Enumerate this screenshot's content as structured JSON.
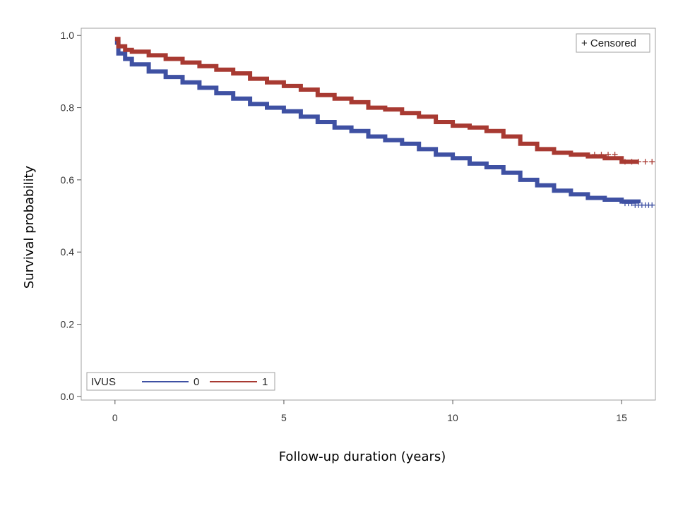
{
  "chart_data": {
    "type": "line",
    "subtype": "kaplan-meier",
    "title": "",
    "xlabel": "Follow-up duration (years)",
    "ylabel": "Survival probability",
    "xlim": [
      -1,
      16
    ],
    "ylim": [
      -0.01,
      1.02
    ],
    "x_ticks": [
      0,
      5,
      10,
      15
    ],
    "y_ticks": [
      0.0,
      0.2,
      0.4,
      0.6,
      0.8,
      1.0
    ],
    "x_tick_labels": [
      "0",
      "5",
      "10",
      "15"
    ],
    "y_tick_labels": [
      "0.0",
      "0.2",
      "0.4",
      "0.6",
      "0.8",
      "1.0"
    ],
    "grid": false,
    "legend": {
      "title": "IVUS",
      "placement": "bottom-left"
    },
    "censor_legend": {
      "label": "+ Censored",
      "placement": "top-right"
    },
    "series": [
      {
        "name": "0",
        "color": "#3f51a3",
        "x": [
          0,
          0.1,
          0.3,
          0.5,
          1,
          1.5,
          2,
          2.5,
          3,
          3.5,
          4,
          4.5,
          5,
          5.5,
          6,
          6.5,
          7,
          7.5,
          8,
          8.5,
          9,
          9.5,
          10,
          10.5,
          11,
          11.5,
          12,
          12.5,
          13,
          13.5,
          14,
          14.5,
          15,
          15.5
        ],
        "y": [
          0.98,
          0.95,
          0.935,
          0.92,
          0.9,
          0.885,
          0.87,
          0.855,
          0.84,
          0.825,
          0.81,
          0.8,
          0.79,
          0.775,
          0.76,
          0.745,
          0.735,
          0.72,
          0.71,
          0.7,
          0.685,
          0.67,
          0.66,
          0.645,
          0.635,
          0.62,
          0.6,
          0.585,
          0.57,
          0.56,
          0.55,
          0.545,
          0.54,
          0.535
        ]
      },
      {
        "name": "1",
        "color": "#a83a32",
        "x": [
          0,
          0.1,
          0.3,
          0.5,
          1,
          1.5,
          2,
          2.5,
          3,
          3.5,
          4,
          4.5,
          5,
          5.5,
          6,
          6.5,
          7,
          7.5,
          8,
          8.5,
          9,
          9.5,
          10,
          10.5,
          11,
          11.5,
          12,
          12.5,
          13,
          13.5,
          14,
          14.5,
          15,
          15.5
        ],
        "y": [
          0.99,
          0.97,
          0.96,
          0.955,
          0.945,
          0.935,
          0.925,
          0.915,
          0.905,
          0.895,
          0.88,
          0.87,
          0.86,
          0.85,
          0.835,
          0.825,
          0.815,
          0.8,
          0.795,
          0.785,
          0.775,
          0.76,
          0.75,
          0.745,
          0.735,
          0.72,
          0.7,
          0.685,
          0.675,
          0.67,
          0.665,
          0.66,
          0.65,
          0.65
        ]
      }
    ],
    "censor_marks": [
      {
        "series": "0",
        "x": [
          15.1,
          15.2,
          15.3,
          15.4,
          15.5,
          15.6,
          15.7,
          15.8,
          15.9
        ],
        "y": [
          0.535,
          0.535,
          0.535,
          0.53,
          0.53,
          0.53,
          0.53,
          0.53,
          0.53
        ]
      },
      {
        "series": "1",
        "x": [
          14.2,
          14.4,
          14.6,
          14.8,
          15.1,
          15.3,
          15.5,
          15.7,
          15.9
        ],
        "y": [
          0.67,
          0.67,
          0.67,
          0.67,
          0.65,
          0.65,
          0.65,
          0.65,
          0.65
        ]
      }
    ]
  }
}
